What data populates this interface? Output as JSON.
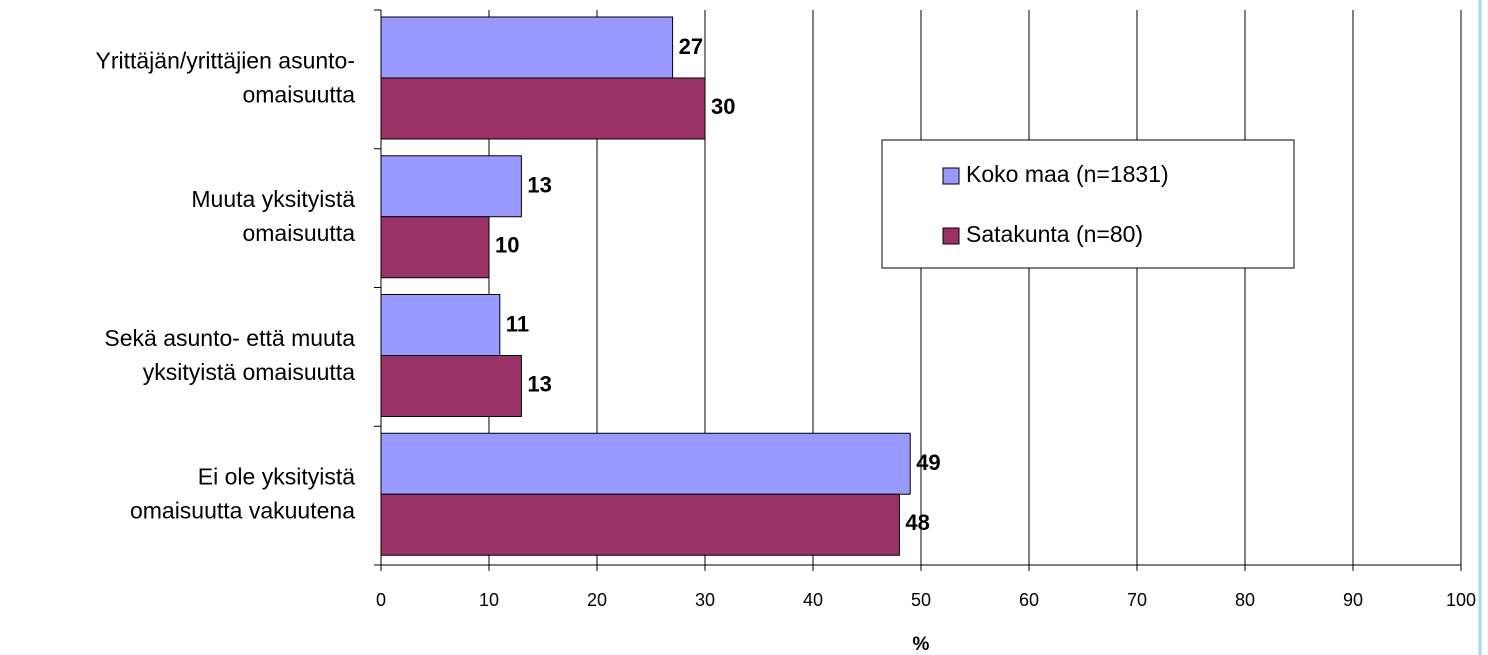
{
  "chart_data": {
    "type": "barh",
    "categories": [
      [
        "Yrittäjän/yrittäjien asunto-",
        "omaisuutta"
      ],
      [
        "Muuta yksityistä",
        "omaisuutta"
      ],
      [
        "Sekä asunto- että muuta",
        "yksityistä omaisuutta"
      ],
      [
        "Ei ole yksityistä",
        "omaisuutta vakuutena"
      ]
    ],
    "series": [
      {
        "name": "Koko maa (n=1831)",
        "color": "#9999ff",
        "values": [
          27,
          13,
          11,
          49
        ]
      },
      {
        "name": "Satakunta (n=80)",
        "color": "#993366",
        "values": [
          30,
          10,
          13,
          48
        ]
      }
    ],
    "xlabel": "%",
    "xlim": [
      0,
      100
    ],
    "xticks": [
      0,
      10,
      20,
      30,
      40,
      50,
      60,
      70,
      80,
      90,
      100
    ],
    "grid": true
  }
}
